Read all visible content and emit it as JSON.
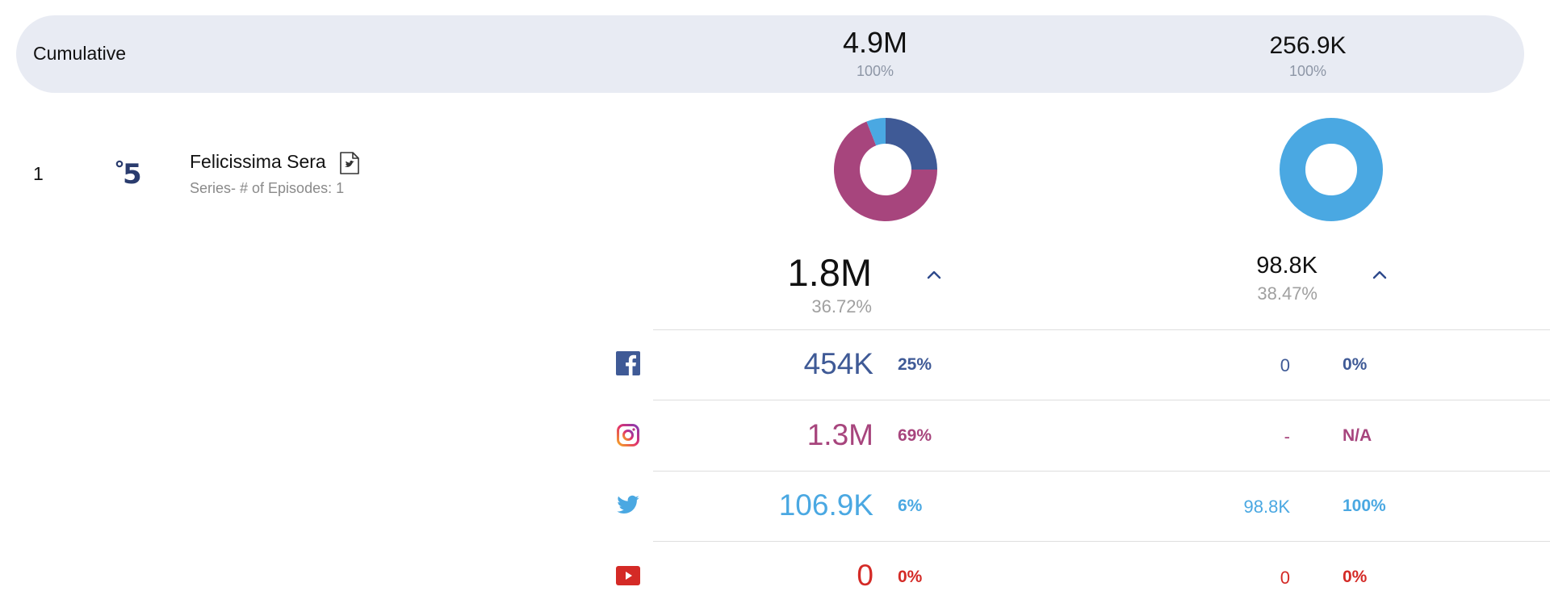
{
  "cumulative": {
    "label": "Cumulative",
    "col1": {
      "value": "4.9M",
      "pct": "100%"
    },
    "col2": {
      "value": "256.9K",
      "pct": "100%"
    }
  },
  "show": {
    "rank": "1",
    "logo": "5",
    "title": "Felicissima Sera",
    "subtitle": "Series- # of Episodes: 1"
  },
  "totals": {
    "col1": {
      "value": "1.8M",
      "pct": "36.72%"
    },
    "col2": {
      "value": "98.8K",
      "pct": "38.47%"
    }
  },
  "platforms": [
    {
      "name": "facebook-icon",
      "color": "#3f5a96",
      "col1_value": "454K",
      "col1_pct": "25%",
      "col2_value": "0",
      "col2_pct": "0%"
    },
    {
      "name": "instagram-icon",
      "color": "#a7457d",
      "col1_value": "1.3M",
      "col1_pct": "69%",
      "col2_value": "-",
      "col2_pct": "N/A"
    },
    {
      "name": "twitter-icon",
      "color": "#4aa8e2",
      "col1_value": "106.9K",
      "col1_pct": "6%",
      "col2_value": "98.8K",
      "col2_pct": "100%"
    },
    {
      "name": "youtube-icon",
      "color": "#d42a26",
      "col1_value": "0",
      "col1_pct": "0%",
      "col2_value": "0",
      "col2_pct": "0%"
    }
  ],
  "chart_data": [
    {
      "type": "pie",
      "categories": [
        "Facebook",
        "Instagram",
        "Twitter",
        "YouTube"
      ],
      "values": [
        25,
        69,
        6,
        0
      ],
      "colors": [
        "#3f5a96",
        "#a7457d",
        "#4aa8e2",
        "#d42a26"
      ]
    },
    {
      "type": "pie",
      "categories": [
        "Facebook",
        "Instagram",
        "Twitter",
        "YouTube"
      ],
      "values": [
        0,
        0,
        100,
        0
      ],
      "colors": [
        "#3f5a96",
        "#a7457d",
        "#4aa8e2",
        "#d42a26"
      ]
    }
  ]
}
